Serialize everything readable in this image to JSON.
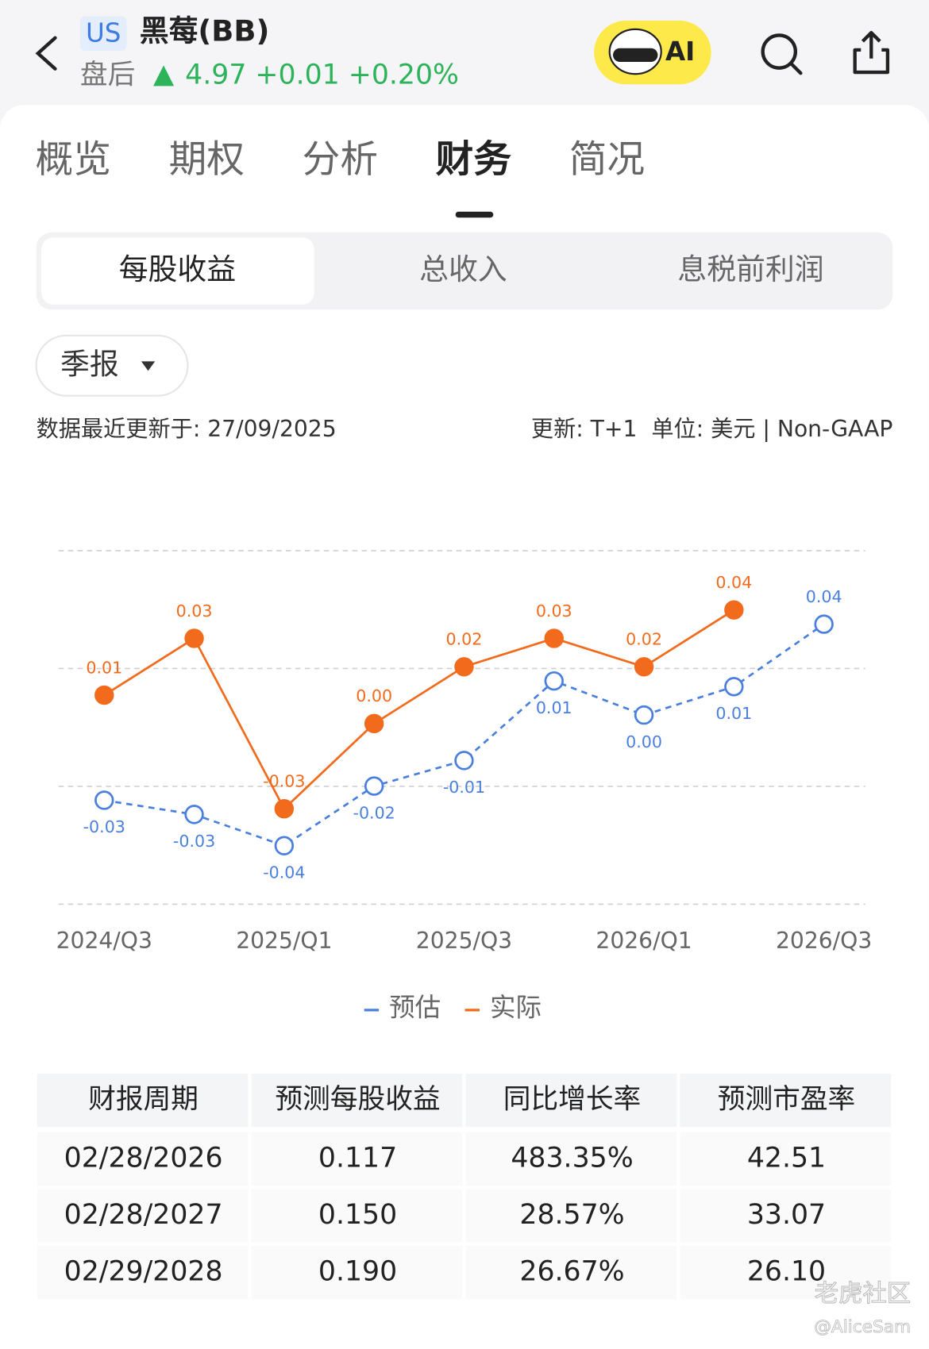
{
  "header": {
    "market": "US",
    "name": "黑莓(BB)",
    "session": "盘后",
    "quote": "4.97 +0.01 +0.20%",
    "ai": "AI"
  },
  "tabs": [
    "概览",
    "期权",
    "分析",
    "财务",
    "简况"
  ],
  "segments": [
    "每股收益",
    "总收入",
    "息税前利润"
  ],
  "period": "季报",
  "updated": "数据最近更新于: 27/09/2025",
  "meta": "更新: T+1  单位: 美元 | Non-GAAP",
  "chart_data": {
    "type": "line",
    "categories": [
      "2024/Q3",
      null,
      "2025/Q1",
      null,
      "2025/Q3",
      null,
      "2026/Q1",
      null,
      "2026/Q3"
    ],
    "series": [
      {
        "name": "预估",
        "color": "#4a7fe0",
        "dashed": true,
        "hollow": true,
        "values": [
          -0.027,
          -0.032,
          -0.043,
          -0.022,
          -0.013,
          0.015,
          0.003,
          0.013,
          0.035
        ],
        "value_labels": [
          "-0.03",
          "-0.03",
          "-0.04",
          "-0.02",
          "-0.01",
          "0.01",
          "0.00",
          "0.01",
          "0.04"
        ]
      },
      {
        "name": "实际",
        "color": "#f26b1d",
        "dashed": false,
        "hollow": false,
        "values": [
          0.01,
          0.03,
          -0.03,
          0.0,
          0.02,
          0.03,
          0.02,
          0.04,
          null
        ],
        "value_labels": [
          "0.01",
          "0.03",
          "-0.03",
          "0.00",
          "0.02",
          "0.03",
          "0.02",
          "0.04",
          null
        ]
      }
    ],
    "ylim": [
      -0.0636,
      0.0609
    ],
    "grid": true
  },
  "table": {
    "header": [
      "财报周期",
      "预测每股收益",
      "同比增长率",
      "预测市盈率"
    ],
    "rows": [
      [
        "02/28/2026",
        "0.117",
        "483.35%",
        "42.51"
      ],
      [
        "02/28/2027",
        "0.150",
        "28.57%",
        "33.07"
      ],
      [
        "02/29/2028",
        "0.190",
        "26.67%",
        "26.10"
      ]
    ]
  },
  "watermark": [
    "老虎社区",
    "@AliceSam"
  ]
}
